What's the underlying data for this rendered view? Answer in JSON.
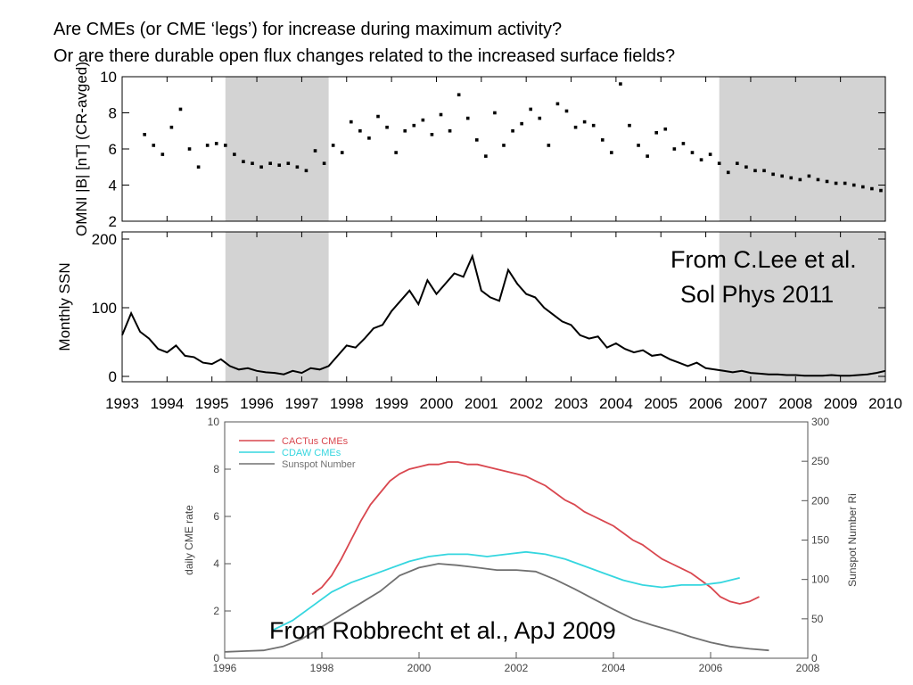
{
  "header": {
    "line1": "Are CMEs (or CME ‘legs’) for increase during maximum activity?",
    "line2": "Or are there durable open flux changes related to the increased surface fields?"
  },
  "credits": {
    "lee_line1": "From C.Lee et al.",
    "lee_line2": "Sol Phys 2011",
    "robbrecht": "From Robbrecht et al., ApJ 2009"
  },
  "colors": {
    "shade": "#d3d3d3",
    "cactus": "#d9474f",
    "cdaw": "#35d6df",
    "sunspot": "#707070",
    "axis": "#555555"
  },
  "chart_data": [
    {
      "id": "omni",
      "type": "scatter",
      "ylabel": "OMNI |B| [nT] (CR-avged)",
      "ylim": [
        2,
        10
      ],
      "yticks": [
        2,
        4,
        6,
        8,
        10
      ],
      "xlim": [
        1993,
        2010
      ],
      "shaded_ranges": [
        [
          1995.3,
          1997.6
        ],
        [
          2006.3,
          2010
        ]
      ],
      "x": [
        1993.5,
        1993.7,
        1993.9,
        1994.1,
        1994.3,
        1994.5,
        1994.7,
        1994.9,
        1995.1,
        1995.3,
        1995.5,
        1995.7,
        1995.9,
        1996.1,
        1996.3,
        1996.5,
        1996.7,
        1996.9,
        1997.1,
        1997.3,
        1997.5,
        1997.7,
        1997.9,
        1998.1,
        1998.3,
        1998.5,
        1998.7,
        1998.9,
        1999.1,
        1999.3,
        1999.5,
        1999.7,
        1999.9,
        2000.1,
        2000.3,
        2000.5,
        2000.7,
        2000.9,
        2001.1,
        2001.3,
        2001.5,
        2001.7,
        2001.9,
        2002.1,
        2002.3,
        2002.5,
        2002.7,
        2002.9,
        2003.1,
        2003.3,
        2003.5,
        2003.7,
        2003.9,
        2004.1,
        2004.3,
        2004.5,
        2004.7,
        2004.9,
        2005.1,
        2005.3,
        2005.5,
        2005.7,
        2005.9,
        2006.1,
        2006.3,
        2006.5,
        2006.7,
        2006.9,
        2007.1,
        2007.3,
        2007.5,
        2007.7,
        2007.9,
        2008.1,
        2008.3,
        2008.5,
        2008.7,
        2008.9,
        2009.1,
        2009.3,
        2009.5,
        2009.7,
        2009.9
      ],
      "values": [
        6.8,
        6.2,
        5.7,
        7.2,
        8.2,
        6.0,
        5.0,
        6.2,
        6.3,
        6.2,
        5.7,
        5.3,
        5.2,
        5.0,
        5.2,
        5.1,
        5.2,
        5.0,
        4.8,
        5.9,
        5.2,
        6.2,
        5.8,
        7.5,
        7.0,
        6.6,
        7.8,
        7.2,
        5.8,
        7.0,
        7.3,
        7.6,
        6.8,
        7.9,
        7.0,
        9.0,
        7.7,
        6.5,
        5.6,
        8.0,
        6.2,
        7.0,
        7.4,
        8.2,
        7.7,
        6.2,
        8.5,
        8.1,
        7.2,
        7.5,
        7.3,
        6.5,
        5.8,
        9.6,
        7.3,
        6.2,
        5.6,
        6.9,
        7.1,
        6.0,
        6.3,
        5.8,
        5.4,
        5.7,
        5.2,
        4.7,
        5.2,
        5.0,
        4.8,
        4.8,
        4.6,
        4.5,
        4.4,
        4.3,
        4.5,
        4.3,
        4.2,
        4.1,
        4.1,
        4.0,
        3.9,
        3.8,
        3.7
      ]
    },
    {
      "id": "ssn",
      "type": "line",
      "ylabel": "Monthly SSN",
      "ylim": [
        0,
        200
      ],
      "yticks": [
        0,
        100,
        200
      ],
      "xlim": [
        1993,
        2010
      ],
      "xticks": [
        1993,
        1994,
        1995,
        1996,
        1997,
        1998,
        1999,
        2000,
        2001,
        2002,
        2003,
        2004,
        2005,
        2006,
        2007,
        2008,
        2009,
        2010
      ],
      "shaded_ranges": [
        [
          1995.3,
          1997.6
        ],
        [
          2006.3,
          2010
        ]
      ],
      "x": [
        1993.0,
        1993.2,
        1993.4,
        1993.6,
        1993.8,
        1994.0,
        1994.2,
        1994.4,
        1994.6,
        1994.8,
        1995.0,
        1995.2,
        1995.4,
        1995.6,
        1995.8,
        1996.0,
        1996.2,
        1996.4,
        1996.6,
        1996.8,
        1997.0,
        1997.2,
        1997.4,
        1997.6,
        1997.8,
        1998.0,
        1998.2,
        1998.4,
        1998.6,
        1998.8,
        1999.0,
        1999.2,
        1999.4,
        1999.6,
        1999.8,
        2000.0,
        2000.2,
        2000.4,
        2000.6,
        2000.8,
        2001.0,
        2001.2,
        2001.4,
        2001.6,
        2001.8,
        2002.0,
        2002.2,
        2002.4,
        2002.6,
        2002.8,
        2003.0,
        2003.2,
        2003.4,
        2003.6,
        2003.8,
        2004.0,
        2004.2,
        2004.4,
        2004.6,
        2004.8,
        2005.0,
        2005.2,
        2005.4,
        2005.6,
        2005.8,
        2006.0,
        2006.2,
        2006.4,
        2006.6,
        2006.8,
        2007.0,
        2007.2,
        2007.4,
        2007.6,
        2007.8,
        2008.0,
        2008.2,
        2008.4,
        2008.6,
        2008.8,
        2009.0,
        2009.2,
        2009.4,
        2009.6,
        2009.8,
        2010.0
      ],
      "values": [
        60,
        92,
        65,
        55,
        40,
        35,
        45,
        30,
        28,
        20,
        18,
        25,
        15,
        10,
        12,
        8,
        6,
        5,
        3,
        8,
        5,
        12,
        10,
        15,
        30,
        45,
        42,
        55,
        70,
        75,
        95,
        110,
        125,
        105,
        140,
        120,
        135,
        150,
        145,
        175,
        125,
        115,
        110,
        155,
        135,
        120,
        115,
        100,
        90,
        80,
        75,
        60,
        55,
        58,
        42,
        48,
        40,
        35,
        38,
        30,
        32,
        25,
        20,
        15,
        20,
        12,
        10,
        8,
        6,
        8,
        5,
        4,
        3,
        3,
        2,
        2,
        1,
        1,
        1,
        2,
        1,
        1,
        2,
        3,
        5,
        8
      ]
    },
    {
      "id": "cme",
      "type": "line",
      "ylabel": "daily CME rate",
      "y2label": "Sunspot Number Ri",
      "ylim": [
        0,
        10
      ],
      "yticks": [
        0,
        2,
        4,
        6,
        8,
        10
      ],
      "y2lim": [
        0,
        300
      ],
      "y2ticks": [
        0,
        50,
        100,
        150,
        200,
        250,
        300
      ],
      "xlim": [
        1996,
        2008
      ],
      "xticks": [
        1996,
        1998,
        2000,
        2002,
        2004,
        2006,
        2008
      ],
      "series": [
        {
          "name": "CACTus CMEs",
          "axis": "left",
          "x": [
            1997.8,
            1998.0,
            1998.2,
            1998.4,
            1998.6,
            1998.8,
            1999.0,
            1999.2,
            1999.4,
            1999.6,
            1999.8,
            2000.0,
            2000.2,
            2000.4,
            2000.6,
            2000.8,
            2001.0,
            2001.2,
            2001.4,
            2001.6,
            2001.8,
            2002.0,
            2002.2,
            2002.4,
            2002.6,
            2002.8,
            2003.0,
            2003.2,
            2003.4,
            2003.6,
            2003.8,
            2004.0,
            2004.2,
            2004.4,
            2004.6,
            2004.8,
            2005.0,
            2005.2,
            2005.4,
            2005.6,
            2005.8,
            2006.0,
            2006.2,
            2006.4,
            2006.6,
            2006.8,
            2007.0
          ],
          "values": [
            2.7,
            3.0,
            3.5,
            4.2,
            5.0,
            5.8,
            6.5,
            7.0,
            7.5,
            7.8,
            8.0,
            8.1,
            8.2,
            8.2,
            8.3,
            8.3,
            8.2,
            8.2,
            8.1,
            8.0,
            7.9,
            7.8,
            7.7,
            7.5,
            7.3,
            7.0,
            6.7,
            6.5,
            6.2,
            6.0,
            5.8,
            5.6,
            5.3,
            5.0,
            4.8,
            4.5,
            4.2,
            4.0,
            3.8,
            3.6,
            3.3,
            3.0,
            2.6,
            2.4,
            2.3,
            2.4,
            2.6
          ]
        },
        {
          "name": "CDAW CMEs",
          "axis": "left",
          "x": [
            1997.0,
            1997.4,
            1997.8,
            1998.2,
            1998.6,
            1999.0,
            1999.4,
            1999.8,
            2000.2,
            2000.6,
            2001.0,
            2001.4,
            2001.8,
            2002.2,
            2002.6,
            2003.0,
            2003.4,
            2003.8,
            2004.2,
            2004.6,
            2005.0,
            2005.4,
            2005.8,
            2006.2,
            2006.6
          ],
          "values": [
            1.2,
            1.6,
            2.2,
            2.8,
            3.2,
            3.5,
            3.8,
            4.1,
            4.3,
            4.4,
            4.4,
            4.3,
            4.4,
            4.5,
            4.4,
            4.2,
            3.9,
            3.6,
            3.3,
            3.1,
            3.0,
            3.1,
            3.1,
            3.2,
            3.4
          ]
        },
        {
          "name": "Sunspot Number",
          "axis": "right",
          "x": [
            1996.0,
            1996.4,
            1996.8,
            1997.2,
            1997.6,
            1998.0,
            1998.4,
            1998.8,
            1999.2,
            1999.6,
            2000.0,
            2000.4,
            2000.8,
            2001.2,
            2001.6,
            2002.0,
            2002.4,
            2002.8,
            2003.2,
            2003.6,
            2004.0,
            2004.4,
            2004.8,
            2005.2,
            2005.6,
            2006.0,
            2006.4,
            2006.8,
            2007.2
          ],
          "values": [
            8,
            9,
            10,
            15,
            25,
            40,
            55,
            70,
            85,
            105,
            115,
            120,
            118,
            115,
            112,
            112,
            110,
            100,
            88,
            75,
            62,
            50,
            42,
            35,
            27,
            20,
            15,
            12,
            10
          ]
        }
      ]
    }
  ]
}
